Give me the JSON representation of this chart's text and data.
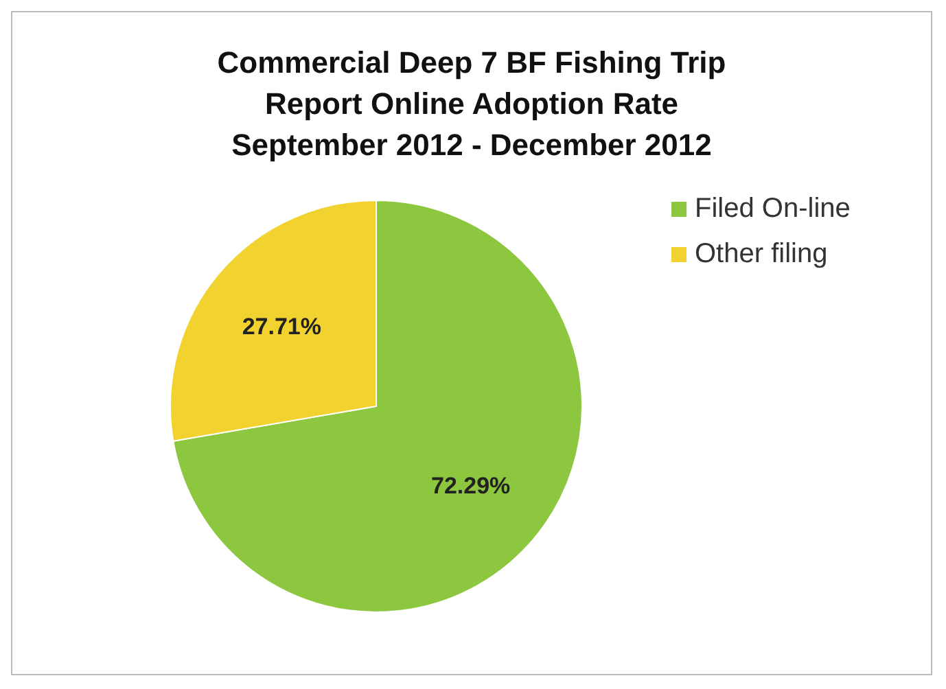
{
  "chart_data": {
    "type": "pie",
    "title": "Commercial Deep 7 BF Fishing Trip Report Online Adoption Rate September 2012 - December 2012",
    "categories": [
      "Filed On-line",
      "Other filing"
    ],
    "values": [
      72.29,
      27.71
    ],
    "colors": [
      "#8dc63f",
      "#f2d22e"
    ],
    "value_labels": [
      "72.29%",
      "27.71%"
    ],
    "legend": "right"
  }
}
